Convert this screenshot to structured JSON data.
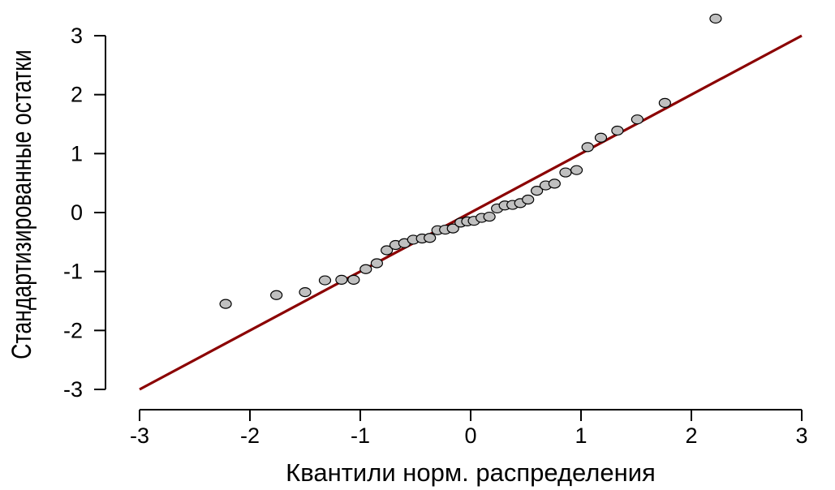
{
  "chart_data": {
    "type": "scatter",
    "title": "",
    "xlabel": "Квантили норм. распределения",
    "ylabel": "Стандартизированные остатки",
    "xlim": [
      -3,
      3
    ],
    "ylim": [
      -3,
      3
    ],
    "xticks": [
      -3,
      -2,
      -1,
      0,
      1,
      2,
      3
    ],
    "yticks": [
      -3,
      -2,
      -1,
      0,
      1,
      2,
      3
    ],
    "grid": false,
    "point_color": "#c0c0c0",
    "line_color": "#8b0000",
    "reference_line": {
      "x": [
        -3,
        3
      ],
      "y": [
        -3,
        3
      ]
    },
    "points": {
      "x": [
        -2.22,
        -1.76,
        -1.5,
        -1.32,
        -1.17,
        -1.06,
        -0.95,
        -0.85,
        -0.76,
        -0.68,
        -0.6,
        -0.52,
        -0.44,
        -0.37,
        -0.3,
        -0.23,
        -0.16,
        -0.09,
        -0.03,
        0.03,
        0.1,
        0.17,
        0.24,
        0.31,
        0.38,
        0.45,
        0.52,
        0.6,
        0.68,
        0.76,
        0.86,
        0.96,
        1.06,
        1.18,
        1.33,
        1.51,
        1.76,
        2.22
      ],
      "y": [
        -1.55,
        -1.4,
        -1.35,
        -1.15,
        -1.14,
        -1.14,
        -0.96,
        -0.86,
        -0.64,
        -0.55,
        -0.52,
        -0.46,
        -0.44,
        -0.43,
        -0.3,
        -0.29,
        -0.27,
        -0.17,
        -0.15,
        -0.14,
        -0.09,
        -0.07,
        0.07,
        0.12,
        0.13,
        0.16,
        0.22,
        0.37,
        0.46,
        0.49,
        0.68,
        0.72,
        1.11,
        1.27,
        1.39,
        1.58,
        1.86,
        3.29
      ]
    }
  }
}
